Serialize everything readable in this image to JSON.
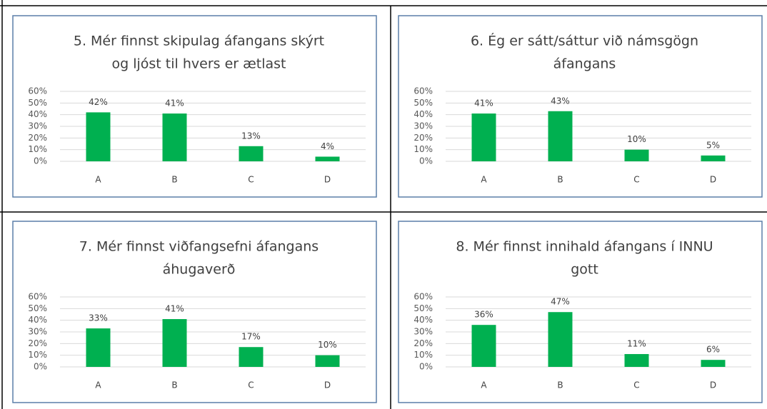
{
  "chart_data": [
    {
      "type": "bar",
      "title": [
        "5. Mér finnst skipulag áfangans skýrt",
        "og ljóst til hvers er ætlast"
      ],
      "categories": [
        "A",
        "B",
        "C",
        "D"
      ],
      "values": [
        42,
        41,
        13,
        4
      ],
      "value_labels": [
        "42%",
        "41%",
        "13%",
        "4%"
      ],
      "color": "#00b050",
      "ylim": [
        0,
        60
      ],
      "yticks": [
        {
          "value": 0,
          "label": "0%"
        },
        {
          "value": 10,
          "label": "10%"
        },
        {
          "value": 20,
          "label": "20%"
        },
        {
          "value": 30,
          "label": "30%"
        },
        {
          "value": 40,
          "label": "40%"
        },
        {
          "value": 50,
          "label": "50%"
        },
        {
          "value": 60,
          "label": "60%"
        }
      ],
      "grid": true
    },
    {
      "type": "bar",
      "title": [
        "6. Ég er sátt/sáttur við námsgögn",
        "áfangans"
      ],
      "categories": [
        "A",
        "B",
        "C",
        "D"
      ],
      "values": [
        41,
        43,
        10,
        5
      ],
      "value_labels": [
        "41%",
        "43%",
        "10%",
        "5%"
      ],
      "color": "#00b050",
      "ylim": [
        0,
        60
      ],
      "yticks": [
        {
          "value": 0,
          "label": "0%"
        },
        {
          "value": 10,
          "label": "10%"
        },
        {
          "value": 20,
          "label": "20%"
        },
        {
          "value": 30,
          "label": "30%"
        },
        {
          "value": 40,
          "label": "40%"
        },
        {
          "value": 50,
          "label": "50%"
        },
        {
          "value": 60,
          "label": "60%"
        }
      ],
      "grid": true
    },
    {
      "type": "bar",
      "title": [
        "7. Mér finnst viðfangsefni áfangans",
        "áhugaverð"
      ],
      "categories": [
        "A",
        "B",
        "C",
        "D"
      ],
      "values": [
        33,
        41,
        17,
        10
      ],
      "value_labels": [
        "33%",
        "41%",
        "17%",
        "10%"
      ],
      "color": "#00b050",
      "ylim": [
        0,
        60
      ],
      "yticks": [
        {
          "value": 0,
          "label": "0%"
        },
        {
          "value": 10,
          "label": "10%"
        },
        {
          "value": 20,
          "label": "20%"
        },
        {
          "value": 30,
          "label": "30%"
        },
        {
          "value": 40,
          "label": "40%"
        },
        {
          "value": 50,
          "label": "50%"
        },
        {
          "value": 60,
          "label": "60%"
        }
      ],
      "grid": true
    },
    {
      "type": "bar",
      "title": [
        "8. Mér finnst innihald áfangans í INNU",
        "gott"
      ],
      "categories": [
        "A",
        "B",
        "C",
        "D"
      ],
      "values": [
        36,
        47,
        11,
        6
      ],
      "value_labels": [
        "36%",
        "47%",
        "11%",
        "6%"
      ],
      "color": "#00b050",
      "ylim": [
        0,
        60
      ],
      "yticks": [
        {
          "value": 0,
          "label": "0%"
        },
        {
          "value": 10,
          "label": "10%"
        },
        {
          "value": 20,
          "label": "20%"
        },
        {
          "value": 30,
          "label": "30%"
        },
        {
          "value": 40,
          "label": "40%"
        },
        {
          "value": 50,
          "label": "50%"
        },
        {
          "value": 60,
          "label": "60%"
        }
      ],
      "grid": true
    }
  ]
}
